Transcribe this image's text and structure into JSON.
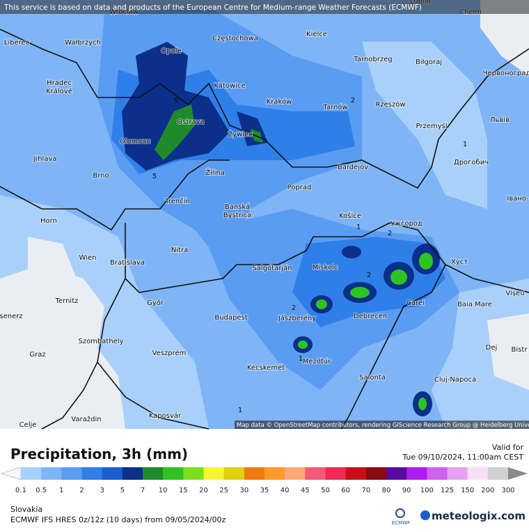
{
  "header": {
    "notice": "This service is based on data and products of the European Centre for Medium-range Weather Forecasts (ECMWF)"
  },
  "map": {
    "attribution": "Map data © OpenStreetMap contributors, rendering GIScience Research Group @ Heidelberg University",
    "cities": [
      "Wrocław",
      "Lublin",
      "Chełm",
      "Liberec",
      "Wałbrzych",
      "Opole",
      "Częstochowa",
      "Kielce",
      "Tarnobrzeg",
      "Biłgoraj",
      "Червоноград",
      "Hradec",
      "Králové",
      "Katowice",
      "Kraków",
      "Tarnów",
      "Rzeszów",
      "Львів",
      "Ostrava",
      "Przemyśl",
      "Żywiec",
      "Olomouc",
      "Jihlava",
      "Дрогобич",
      "Brno",
      "Žilina",
      "Bardejov",
      "Poprad",
      "Івано-",
      "Trenčín",
      "Banská",
      "Bystrica",
      "Košice",
      "Ужгород",
      "Horn",
      "Nitra",
      "Wien",
      "Bratislava",
      "Salgótarján",
      "Miskolc",
      "Хуст",
      "Vișeu",
      "Ternitz",
      "Győr",
      "Carei",
      "Baia Mare",
      "Budapest",
      "Jászberény",
      "Debrecen",
      "senerz",
      "Szombathely",
      "Dej",
      "Bistr",
      "Graz",
      "Veszprém",
      "Mezőtúr",
      "Kecskemét",
      "Salonta",
      "Cluj-Napoca",
      "Celje",
      "Varaždin",
      "Kaposvár"
    ],
    "contour_labels": [
      "5",
      "5",
      "2",
      "1",
      "1",
      "2",
      "2",
      "2",
      "1",
      "1"
    ]
  },
  "legend": {
    "title": "Precipitation, 3h (mm)",
    "valid_label": "Valid for",
    "valid_time": "Tue 09/10/2024, 11:00am CEST",
    "labels": [
      "0.1",
      "0.5",
      "1",
      "2",
      "3",
      "5",
      "7",
      "10",
      "15",
      "20",
      "25",
      "30",
      "35",
      "40",
      "45",
      "50",
      "60",
      "70",
      "80",
      "90",
      "100",
      "125",
      "150",
      "200",
      "300"
    ]
  },
  "footer": {
    "region": "Slovakia",
    "model": "ECMWF IFS HRES 0z/12z (10 days) from 09/05/2024/00z",
    "ecmwf_logo": "ECMWF",
    "brand": "meteologix.com"
  }
}
